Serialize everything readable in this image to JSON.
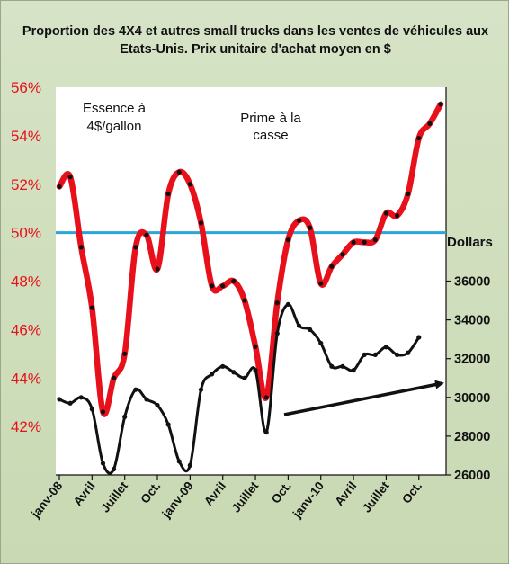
{
  "chart_data": {
    "type": "line",
    "title": "Proportion des 4X4 et autres  small trucks  dans les ventes de véhicules aux Etats-Unis. Prix unitaire d'achat moyen en $",
    "x_ticks": [
      "janv-08",
      "Avril",
      "Juillet",
      "Oct.",
      "janv-09",
      "Avril",
      "Juillet",
      "Oct.",
      "janv-10",
      "Avril",
      "Juillet",
      "Oct."
    ],
    "y_left": {
      "ticks": [
        "42%",
        "44%",
        "46%",
        "48%",
        "50%",
        "52%",
        "54%",
        "56%"
      ],
      "ylim": [
        40,
        56
      ],
      "color": "#e8101a"
    },
    "y_right": {
      "label": "Dollars",
      "ticks": [
        "26000",
        "28000",
        "30000",
        "32000",
        "34000",
        "36000"
      ],
      "ylim": [
        26000,
        46000
      ]
    },
    "reference_line": {
      "value": 50,
      "axis": "left",
      "color": "#2aa6d8"
    },
    "series": [
      {
        "axis": "left",
        "color": "#e8101a",
        "marker_color": "#111111",
        "values": [
          51.9,
          52.3,
          49.4,
          46.9,
          42.6,
          44.0,
          45.0,
          49.4,
          49.9,
          48.5,
          51.6,
          52.5,
          52.0,
          50.4,
          47.8,
          47.8,
          48.0,
          47.2,
          45.3,
          43.2,
          47.1,
          49.7,
          50.5,
          50.2,
          47.9,
          48.6,
          49.1,
          49.6,
          49.6,
          49.7,
          50.8,
          50.7,
          51.6,
          53.9,
          54.5,
          55.3
        ]
      },
      {
        "axis": "right",
        "color": "#111111",
        "values": [
          29900,
          29700,
          30000,
          29400,
          26600,
          26300,
          29000,
          30400,
          29900,
          29600,
          28600,
          26700,
          26500,
          30400,
          31200,
          31600,
          31300,
          31000,
          31400,
          28200,
          33300,
          34800,
          33700,
          33500,
          32800,
          31600,
          31600,
          31400,
          32200,
          32200,
          32600,
          32200,
          32300,
          33100
        ]
      }
    ],
    "annotations": [
      {
        "lines": [
          "Essence à",
          "4$/gallon"
        ]
      },
      {
        "lines": [
          "Prime à la",
          "casse"
        ]
      }
    ]
  }
}
